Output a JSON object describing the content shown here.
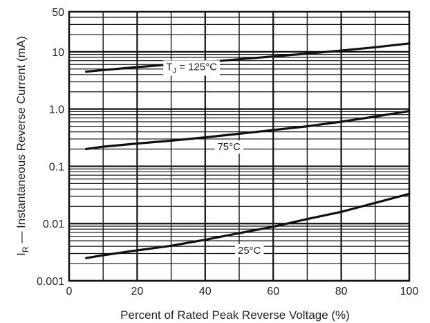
{
  "chart_data": {
    "type": "line",
    "title": "",
    "xlabel": "Percent of Rated Peak Reverse Voltage (%)",
    "ylabel": "I",
    "ylabel_sub": "R",
    "ylabel_rest": " — Instantaneous Reverse Current (mA)",
    "xlim": [
      0,
      100
    ],
    "ylim": [
      0.001,
      50
    ],
    "yscale": "log",
    "grid": true,
    "x_ticks": [
      0,
      20,
      40,
      60,
      80,
      100
    ],
    "x_tick_labels": [
      "0",
      "20",
      "40",
      "60",
      "80",
      "100"
    ],
    "y_ticks": [
      0.001,
      0.01,
      0.1,
      1,
      10,
      50
    ],
    "y_tick_labels": [
      "0.001",
      "0.01",
      "0.1",
      "1.0",
      "10",
      "50"
    ],
    "series": [
      {
        "label_prefix": "T",
        "label_sub": "J",
        "label_rest": " = 125°C",
        "label_at": [
          36,
          5.5
        ],
        "x": [
          5,
          10,
          20,
          30,
          40,
          50,
          60,
          70,
          80,
          90,
          100
        ],
        "y": [
          4.5,
          4.8,
          5.4,
          6.0,
          6.6,
          7.4,
          8.3,
          9.3,
          10.5,
          12.0,
          14.0
        ]
      },
      {
        "label_prefix": "",
        "label_sub": "",
        "label_rest": "75°C",
        "label_at": [
          47,
          0.22
        ],
        "x": [
          5,
          10,
          20,
          30,
          40,
          50,
          60,
          70,
          80,
          90,
          100
        ],
        "y": [
          0.2,
          0.22,
          0.25,
          0.28,
          0.32,
          0.37,
          0.43,
          0.5,
          0.6,
          0.74,
          0.92
        ]
      },
      {
        "label_prefix": "",
        "label_sub": "",
        "label_rest": "25°C",
        "label_at": [
          53,
          0.0034
        ],
        "x": [
          5,
          10,
          20,
          30,
          40,
          50,
          60,
          70,
          80,
          90,
          100
        ],
        "y": [
          0.0025,
          0.0028,
          0.0034,
          0.0041,
          0.0052,
          0.0068,
          0.0088,
          0.012,
          0.016,
          0.023,
          0.033
        ]
      }
    ]
  }
}
